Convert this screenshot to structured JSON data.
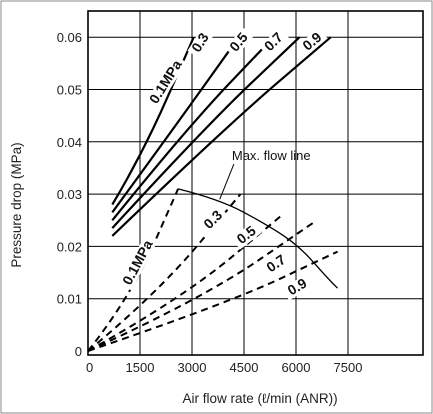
{
  "chart_data": {
    "type": "line",
    "xlabel": "Air flow rate (ℓ/min (ANR))",
    "ylabel": "Pressure drop (MPa)",
    "xlim": [
      0,
      8500
    ],
    "ylim": [
      0,
      0.065
    ],
    "x_ticks": [
      0,
      1500,
      3000,
      4500,
      6000,
      7500
    ],
    "x_tick_labels": [
      "0",
      "1500",
      "3000",
      "4500",
      "6000",
      "7500"
    ],
    "y_ticks": [
      0,
      0.01,
      0.02,
      0.03,
      0.04,
      0.05,
      0.06
    ],
    "y_tick_labels": [
      "0",
      "0.01",
      "0.02",
      "0.03",
      "0.04",
      "0.05",
      "0.06"
    ],
    "grid": true,
    "solid_series": [
      {
        "name": "0.1MPa",
        "points": [
          [
            700,
            0.028
          ],
          [
            1600,
            0.038
          ],
          [
            3050,
            0.06
          ]
        ]
      },
      {
        "name": "0.3",
        "points": [
          [
            700,
            0.0265
          ],
          [
            2300,
            0.041
          ],
          [
            4350,
            0.06
          ]
        ]
      },
      {
        "name": "0.5",
        "points": [
          [
            700,
            0.025
          ],
          [
            2900,
            0.043
          ],
          [
            5350,
            0.06
          ]
        ]
      },
      {
        "name": "0.7",
        "points": [
          [
            700,
            0.0235
          ],
          [
            3400,
            0.043
          ],
          [
            6100,
            0.06
          ]
        ]
      },
      {
        "name": "0.9",
        "points": [
          [
            700,
            0.022
          ],
          [
            4000,
            0.043
          ],
          [
            7000,
            0.06
          ]
        ]
      }
    ],
    "dashed_series": [
      {
        "name": "0.1MPa",
        "points": [
          [
            0,
            0
          ],
          [
            1200,
            0.01
          ],
          [
            2600,
            0.031
          ]
        ]
      },
      {
        "name": "0.3",
        "points": [
          [
            0,
            0
          ],
          [
            2000,
            0.011
          ],
          [
            4400,
            0.03
          ]
        ]
      },
      {
        "name": "0.5",
        "points": [
          [
            0,
            0
          ],
          [
            2700,
            0.01
          ],
          [
            5600,
            0.026
          ]
        ]
      },
      {
        "name": "0.7",
        "points": [
          [
            0,
            0
          ],
          [
            3300,
            0.01
          ],
          [
            6600,
            0.025
          ]
        ]
      },
      {
        "name": "0.9",
        "points": [
          [
            0,
            0
          ],
          [
            4000,
            0.009
          ],
          [
            7200,
            0.019
          ]
        ]
      }
    ],
    "max_flow_line": {
      "label": "Max. flow line",
      "points": [
        [
          2600,
          0.031
        ],
        [
          3800,
          0.029
        ],
        [
          5200,
          0.024
        ],
        [
          6100,
          0.02
        ],
        [
          6900,
          0.014
        ],
        [
          7200,
          0.012
        ]
      ]
    },
    "solid_labels": [
      {
        "text": "0.1MPa",
        "x": 2350,
        "y": 0.051,
        "rotate": -58
      },
      {
        "text": "0.3",
        "x": 3350,
        "y": 0.0585,
        "rotate": -58
      },
      {
        "text": "0.5",
        "x": 4450,
        "y": 0.0585,
        "rotate": -50
      },
      {
        "text": "0.7",
        "x": 5450,
        "y": 0.0585,
        "rotate": -45
      },
      {
        "text": "0.9",
        "x": 6550,
        "y": 0.0585,
        "rotate": -40
      }
    ],
    "dashed_labels": [
      {
        "text": "0.1MPa",
        "x": 1550,
        "y": 0.0165,
        "rotate": -62
      },
      {
        "text": "0.3",
        "x": 3700,
        "y": 0.0245,
        "rotate": -45
      },
      {
        "text": "0.5",
        "x": 4650,
        "y": 0.0215,
        "rotate": -38
      },
      {
        "text": "0.7",
        "x": 5500,
        "y": 0.016,
        "rotate": -34
      },
      {
        "text": "0.9",
        "x": 6100,
        "y": 0.0115,
        "rotate": -30
      }
    ],
    "annotation": {
      "text": "Max. flow line",
      "x": 4150,
      "y": 0.0365,
      "pointer_to": [
        3800,
        0.029
      ]
    }
  }
}
